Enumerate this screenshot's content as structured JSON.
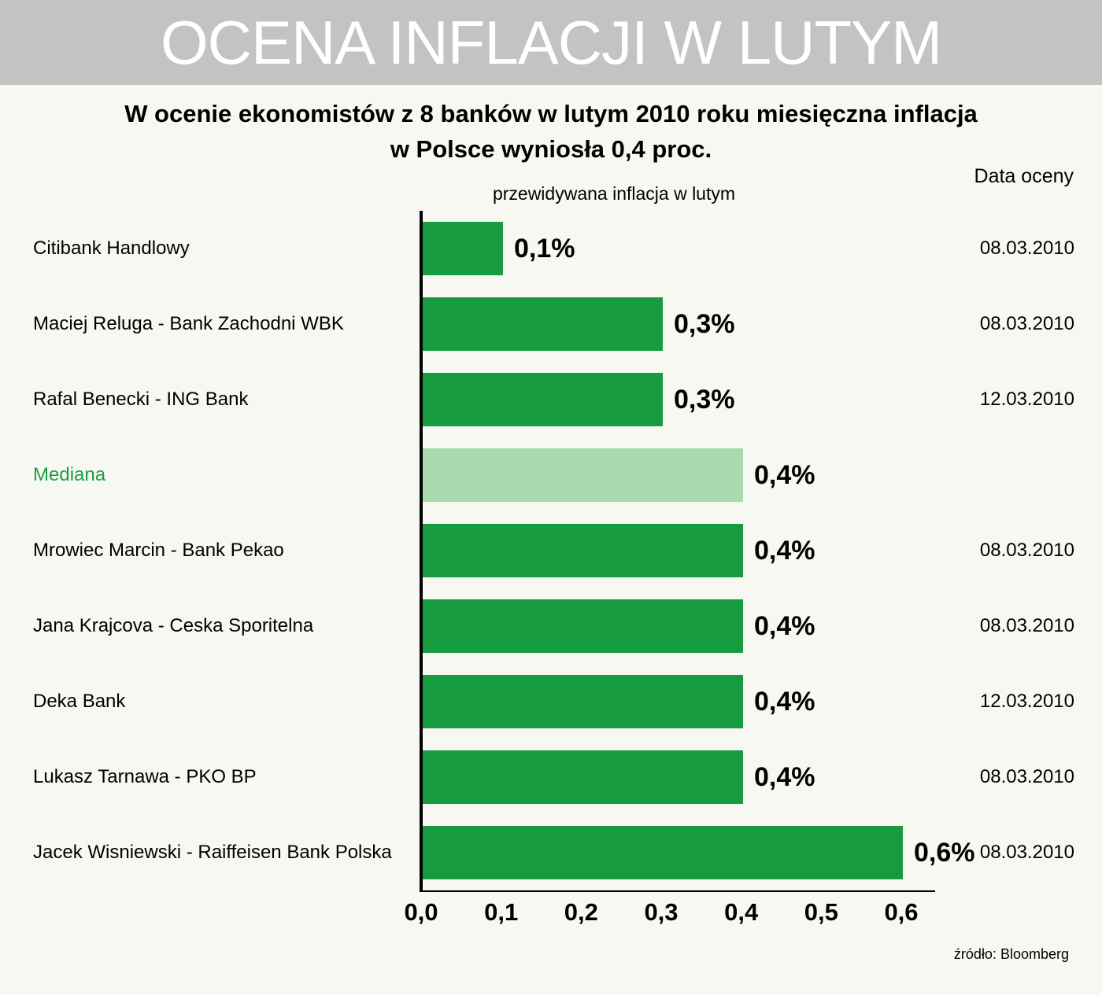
{
  "header": {
    "title": "OCENA INFLACJI W LUTYM"
  },
  "subtitle": {
    "line1": "W ocenie ekonomistów z 8 banków w lutym 2010 roku miesięczna inflacja",
    "line2": "w Polsce wyniosła 0,4 proc."
  },
  "date_column_header": "Data oceny",
  "source": "źródło: Bloomberg",
  "colors": {
    "page_bg": "#f8f8f2",
    "banner_bg": "#c3c3c3"
  },
  "chart_data": {
    "type": "bar",
    "orientation": "horizontal",
    "axis_title": "przewidywana inflacja w lutym",
    "categories": [
      "Citibank Handlowy",
      "Maciej Reluga - Bank Zachodni WBK",
      "Rafal Benecki - ING Bank",
      "Mediana",
      "Mrowiec Marcin - Bank Pekao",
      "Jana Krajcova - Ceska Sporitelna",
      "Deka Bank",
      "Lukasz Tarnawa - PKO BP",
      "Jacek Wisniewski - Raiffeisen Bank Polska"
    ],
    "values": [
      0.1,
      0.3,
      0.3,
      0.4,
      0.4,
      0.4,
      0.4,
      0.4,
      0.6
    ],
    "value_labels": [
      "0,1%",
      "0,3%",
      "0,3%",
      "0,4%",
      "0,4%",
      "0,4%",
      "0,4%",
      "0,4%",
      "0,6%"
    ],
    "dates": [
      "08.03.2010",
      "08.03.2010",
      "12.03.2010",
      "",
      "08.03.2010",
      "08.03.2010",
      "12.03.2010",
      "08.03.2010",
      "08.03.2010"
    ],
    "highlight_index": 3,
    "x_ticks": [
      "0,0",
      "0,1",
      "0,2",
      "0,3",
      "0,4",
      "0,5",
      "0,6"
    ],
    "xlim": [
      0,
      0.6
    ],
    "grid": false,
    "legend": "none",
    "colors": {
      "bar": "#169c3e",
      "highlight_bar": "#a9dbb0",
      "highlight_label": "#1aa041"
    }
  }
}
